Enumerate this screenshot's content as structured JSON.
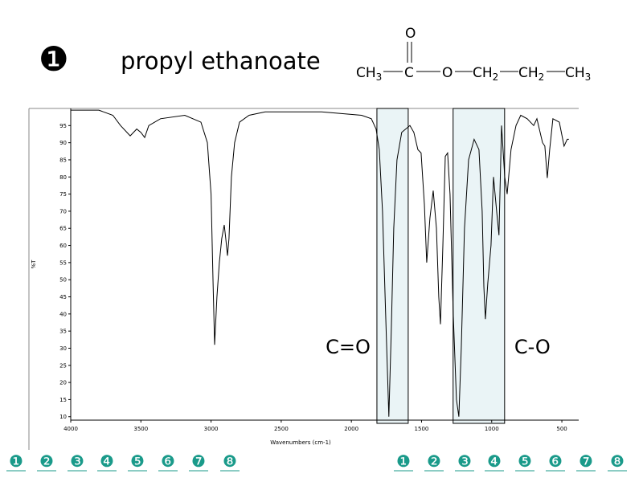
{
  "header": {
    "number": "❶",
    "title": "propyl ethanoate",
    "molecule": {
      "groups": [
        {
          "text": "CH",
          "sub": "3"
        },
        {
          "text": "C"
        },
        {
          "text": "O"
        },
        {
          "text": "CH",
          "sub": "2"
        },
        {
          "text": "CH",
          "sub": "2"
        },
        {
          "text": "CH",
          "sub": "3"
        }
      ],
      "carbonyl_oxygen": "O"
    }
  },
  "chart_data": {
    "type": "line",
    "xlabel": "Wavenumbers (cm-1)",
    "ylabel": "%T",
    "x": [
      4000,
      3800,
      3700,
      3645,
      3576,
      3530,
      3500,
      3473,
      3444,
      3360,
      3187,
      3072,
      3026,
      3000,
      2986,
      2975,
      2958,
      2941,
      2924,
      2906,
      2895,
      2883,
      2872,
      2855,
      2832,
      2797,
      2729,
      2614,
      2213,
      1927,
      1858,
      1824,
      1801,
      1778,
      1756,
      1733,
      1716,
      1698,
      1675,
      1641,
      1583,
      1555,
      1526,
      1503,
      1480,
      1463,
      1440,
      1417,
      1394,
      1377,
      1365,
      1348,
      1331,
      1314,
      1297,
      1274,
      1251,
      1234,
      1217,
      1194,
      1165,
      1125,
      1091,
      1068,
      1056,
      1045,
      1028,
      1005,
      987,
      965,
      948,
      930,
      907,
      890,
      862,
      827,
      793,
      747,
      701,
      678,
      638,
      621,
      604,
      587,
      564,
      518,
      484,
      462,
      450
    ],
    "values": [
      99.5,
      99.5,
      98,
      95,
      92,
      94,
      93,
      91.5,
      95,
      97,
      98,
      96,
      90,
      75,
      50,
      31,
      45,
      55,
      62,
      66,
      62,
      57,
      62,
      80,
      90,
      96,
      98,
      99,
      99,
      98,
      97,
      94,
      88,
      70,
      40,
      10,
      35,
      65,
      85,
      93,
      95,
      93,
      88,
      87,
      72,
      55,
      68,
      76,
      65,
      45,
      37,
      60,
      86,
      87,
      75,
      40,
      15,
      10,
      30,
      65,
      85,
      91,
      88,
      70,
      48,
      38.5,
      49,
      60,
      80,
      70,
      63,
      95,
      80,
      75,
      88,
      95,
      98,
      97,
      95,
      97,
      90,
      89,
      79.7,
      88,
      97,
      96,
      89,
      91,
      91
    ],
    "color": "#000000",
    "xlim": [
      4000,
      380
    ],
    "ylim": [
      9,
      100
    ],
    "xticks": [
      4000,
      3500,
      3000,
      2500,
      2000,
      1500,
      1000,
      500
    ],
    "yticks": [
      10,
      15,
      20,
      25,
      30,
      35,
      40,
      45,
      50,
      55,
      60,
      65,
      70,
      75,
      80,
      85,
      90,
      95
    ],
    "regions": [
      {
        "label": "C=O",
        "xrange": [
          1818,
          1595
        ]
      },
      {
        "label": "C-O",
        "xrange": [
          1275,
          908
        ]
      }
    ],
    "region_color": "#eaf4f6"
  },
  "nav": {
    "left": [
      "❶",
      "❷",
      "❸",
      "❹",
      "❺",
      "❻",
      "❼",
      "❽"
    ],
    "right": [
      "❶",
      "❷",
      "❸",
      "❹",
      "❺",
      "❻",
      "❼",
      "❽"
    ]
  }
}
